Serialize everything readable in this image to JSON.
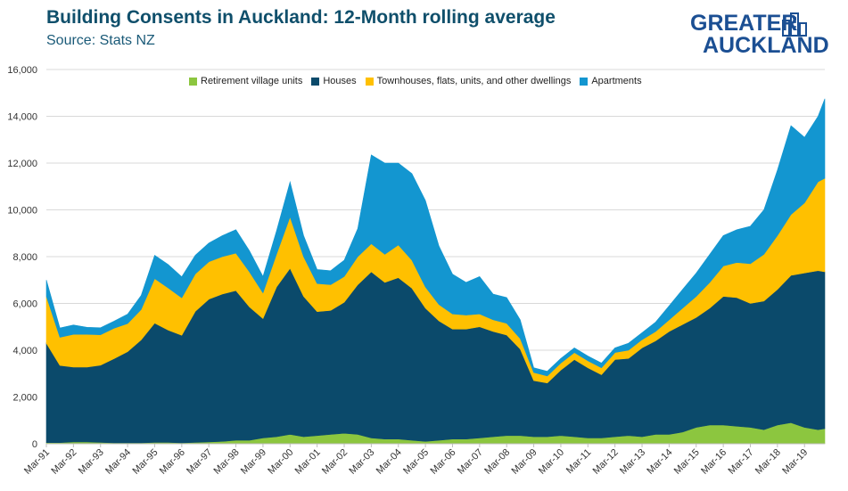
{
  "header": {
    "title": "Building Consents in Auckland: 12-Month rolling average",
    "subtitle": "Source: Stats NZ"
  },
  "logo": {
    "line1": "GREATER",
    "line2": "AUCKLAND",
    "icon": "city-buildings-icon",
    "color": "#1b4f93"
  },
  "colors": {
    "retirement": "#8cc63f",
    "houses": "#0b4a6b",
    "townhouses": "#ffc000",
    "apartments": "#1396d0"
  },
  "chart_data": {
    "type": "area",
    "stacked": true,
    "title": "Building Consents in Auckland: 12-Month rolling average",
    "xlabel": "",
    "ylabel": "",
    "ylim": [
      0,
      16000
    ],
    "yticks": [
      0,
      2000,
      4000,
      6000,
      8000,
      10000,
      12000,
      14000,
      16000
    ],
    "ytick_labels": [
      "0",
      "2,000",
      "4,000",
      "6,000",
      "8,000",
      "10,000",
      "12,000",
      "14,000",
      "16,000"
    ],
    "xtick_labels": [
      "Mar-91",
      "Mar-92",
      "Mar-93",
      "Mar-94",
      "Mar-95",
      "Mar-96",
      "Mar-97",
      "Mar-98",
      "Mar-99",
      "Mar-00",
      "Mar-01",
      "Mar-02",
      "Mar-03",
      "Mar-04",
      "Mar-05",
      "Mar-06",
      "Mar-07",
      "Mar-08",
      "Mar-09",
      "Mar-10",
      "Mar-11",
      "Mar-12",
      "Mar-13",
      "Mar-14",
      "Mar-15",
      "Mar-16",
      "Mar-17",
      "Mar-18",
      "Mar-19"
    ],
    "grid": "horizontal",
    "legend_position": "top",
    "x": [
      1991.0,
      1991.5,
      1992.0,
      1992.5,
      1993.0,
      1993.5,
      1994.0,
      1994.5,
      1995.0,
      1995.5,
      1996.0,
      1996.5,
      1997.0,
      1997.5,
      1998.0,
      1998.5,
      1999.0,
      1999.5,
      2000.0,
      2000.5,
      2001.0,
      2001.5,
      2002.0,
      2002.5,
      2003.0,
      2003.5,
      2004.0,
      2004.5,
      2005.0,
      2005.5,
      2006.0,
      2006.5,
      2007.0,
      2007.5,
      2008.0,
      2008.5,
      2009.0,
      2009.5,
      2010.0,
      2010.5,
      2011.0,
      2011.5,
      2012.0,
      2012.5,
      2013.0,
      2013.5,
      2014.0,
      2014.5,
      2015.0,
      2015.5,
      2016.0,
      2016.5,
      2017.0,
      2017.5,
      2018.0,
      2018.5,
      2019.0,
      2019.5,
      2019.75
    ],
    "series": [
      {
        "name": "Retirement village units",
        "color": "#8cc63f",
        "values": [
          50,
          50,
          80,
          80,
          60,
          40,
          40,
          40,
          60,
          60,
          40,
          60,
          80,
          100,
          150,
          150,
          250,
          300,
          400,
          300,
          350,
          400,
          450,
          400,
          250,
          200,
          200,
          150,
          100,
          150,
          200,
          200,
          250,
          300,
          350,
          350,
          300,
          300,
          350,
          300,
          250,
          250,
          300,
          350,
          300,
          400,
          400,
          500,
          700,
          800,
          800,
          750,
          700,
          600,
          800,
          900,
          700,
          600,
          650
        ]
      },
      {
        "name": "Houses",
        "color": "#0b4a6b",
        "values": [
          4250,
          3300,
          3200,
          3200,
          3300,
          3600,
          3900,
          4400,
          5100,
          4800,
          4600,
          5600,
          6100,
          6300,
          6400,
          5700,
          5100,
          6400,
          7100,
          6000,
          5300,
          5300,
          5600,
          6400,
          7100,
          6700,
          6900,
          6500,
          5700,
          5100,
          4700,
          4700,
          4750,
          4500,
          4300,
          3700,
          2400,
          2300,
          2800,
          3300,
          3000,
          2700,
          3300,
          3300,
          3800,
          4000,
          4400,
          4600,
          4700,
          5000,
          5500,
          5500,
          5300,
          5500,
          5800,
          6300,
          6600,
          6800,
          6700
        ]
      },
      {
        "name": "Townhouses, flats, units, and other dwellings",
        "color": "#ffc000",
        "values": [
          2000,
          1200,
          1400,
          1400,
          1300,
          1300,
          1200,
          1300,
          1900,
          1800,
          1600,
          1600,
          1600,
          1600,
          1600,
          1500,
          1100,
          1400,
          2200,
          1700,
          1200,
          1100,
          1100,
          1200,
          1200,
          1200,
          1400,
          1200,
          900,
          700,
          650,
          600,
          550,
          500,
          500,
          450,
          350,
          300,
          300,
          300,
          300,
          300,
          300,
          350,
          350,
          400,
          500,
          700,
          900,
          1100,
          1300,
          1500,
          1700,
          2000,
          2300,
          2600,
          3000,
          3800,
          4000
        ]
      },
      {
        "name": "Apartments",
        "color": "#1396d0",
        "values": [
          700,
          400,
          400,
          300,
          300,
          300,
          400,
          600,
          1000,
          1000,
          900,
          800,
          800,
          900,
          1000,
          900,
          700,
          1000,
          1500,
          900,
          600,
          600,
          700,
          1200,
          3800,
          3900,
          3500,
          3700,
          3700,
          2500,
          1700,
          1400,
          1600,
          1100,
          1100,
          800,
          200,
          200,
          200,
          200,
          200,
          200,
          200,
          300,
          300,
          400,
          600,
          800,
          1000,
          1200,
          1300,
          1400,
          1600,
          1900,
          2800,
          3800,
          2800,
          2800,
          3400
        ]
      }
    ]
  }
}
